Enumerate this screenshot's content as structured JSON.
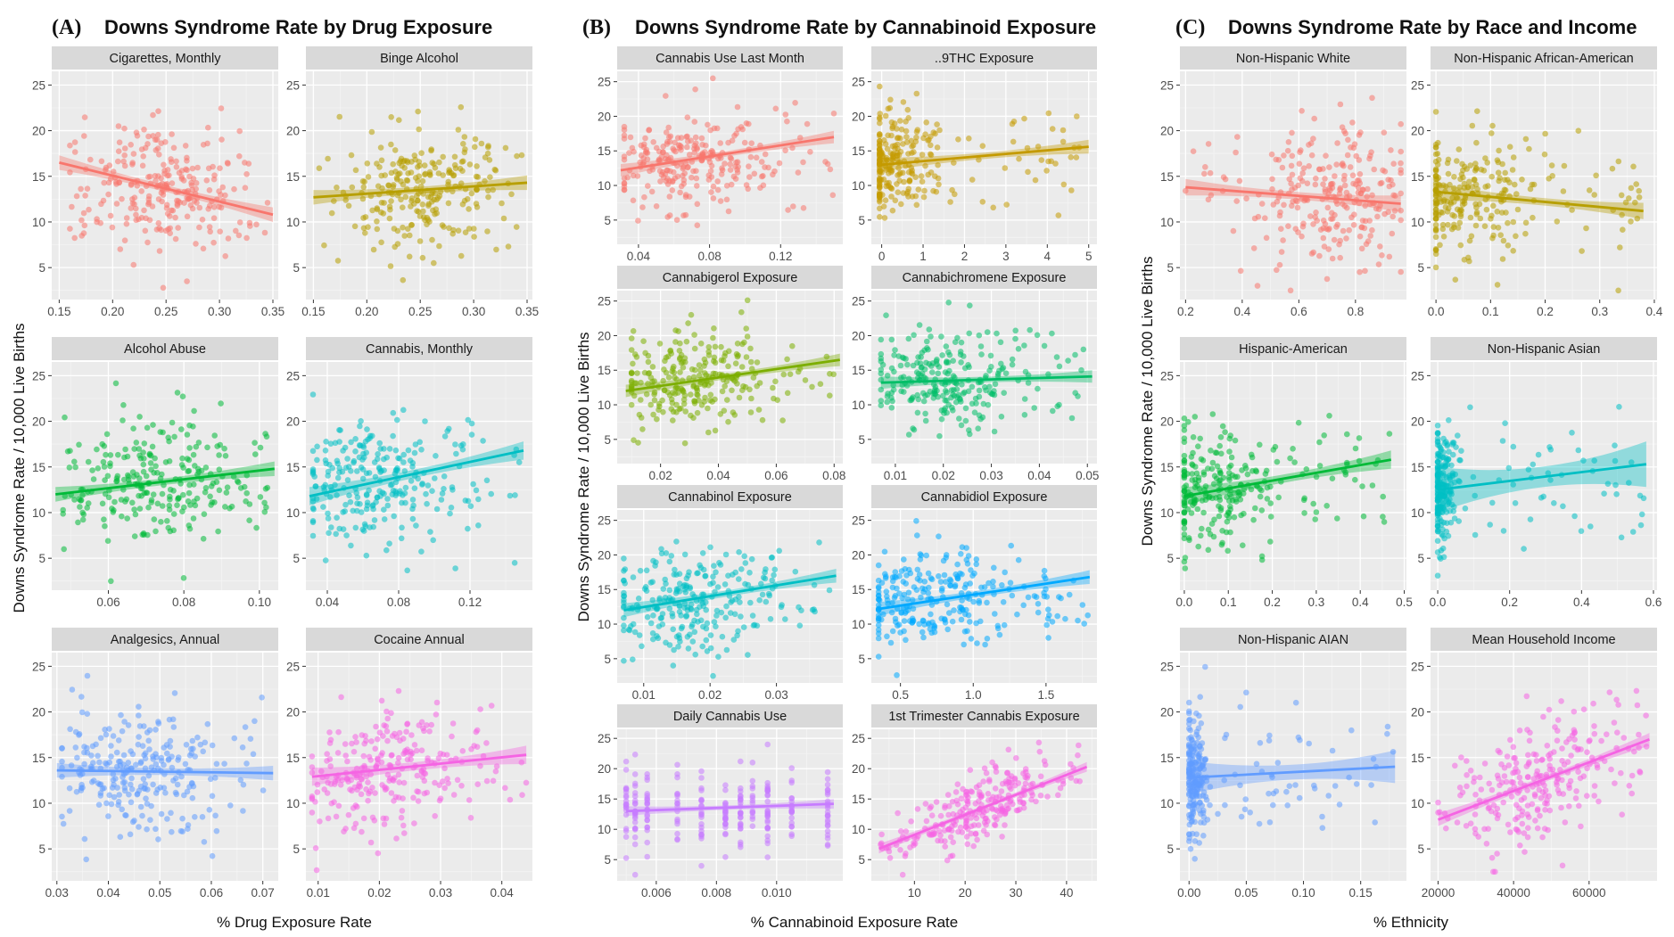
{
  "figure": {
    "panels": [
      {
        "tag": "(A)",
        "title": "Downs Syndrome Rate by Drug Exposure",
        "xlabel": "% Drug Exposure Rate",
        "ylabel": "Downs Syndrome Rate / 10,000 Live Births"
      },
      {
        "tag": "(B)",
        "title": "Downs Syndrome Rate by Cannabinoid Exposure",
        "xlabel": "% Cannabinoid Exposure Rate",
        "ylabel": "Downs Syndrome Rate / 10,000 Live Births"
      },
      {
        "tag": "(C)",
        "title": "Downs Syndrome Rate by Race and Income",
        "xlabel": "% Ethnicity",
        "ylabel": "Downs Syndrome Rate / 10,000 Live Births"
      }
    ]
  },
  "chart_data": [
    {
      "type": "scatter",
      "panel": 0,
      "row": 0,
      "col": 0,
      "title": "Cigarettes, Monthly",
      "color": "#F8766D",
      "xlim": [
        0.143,
        0.355
      ],
      "xticks": [
        0.15,
        0.2,
        0.25,
        0.3,
        0.35
      ],
      "xtick_labels": [
        "0.15",
        "0.20",
        "0.25",
        "0.30",
        "0.35"
      ],
      "ylim": [
        1.5,
        26.5
      ],
      "yticks": [
        5,
        10,
        15,
        20,
        25
      ],
      "ytick_labels": [
        "5",
        "10",
        "15",
        "20",
        "25"
      ],
      "fit": [
        [
          0.15,
          16.5
        ],
        [
          0.35,
          10.8
        ]
      ],
      "ci": 0.8,
      "cloud": {
        "cx": 0.245,
        "sx": 0.035,
        "my": 13.3,
        "sy": 3.5,
        "xmin": 0.16,
        "xmax": 0.345,
        "n": 260
      }
    },
    {
      "type": "scatter",
      "panel": 0,
      "row": 0,
      "col": 1,
      "title": "Binge Alcohol",
      "color": "#B79F00",
      "xlim": [
        0.143,
        0.355
      ],
      "xticks": [
        0.15,
        0.2,
        0.25,
        0.3,
        0.35
      ],
      "xtick_labels": [
        "0.15",
        "0.20",
        "0.25",
        "0.30",
        "0.35"
      ],
      "ylim": [
        1.5,
        26.5
      ],
      "yticks": [
        5,
        10,
        15,
        20,
        25
      ],
      "ytick_labels": [
        "5",
        "10",
        "15",
        "20",
        "25"
      ],
      "fit": [
        [
          0.15,
          12.7
        ],
        [
          0.35,
          14.3
        ]
      ],
      "ci": 0.8,
      "cloud": {
        "cx": 0.25,
        "sx": 0.035,
        "my": 13.3,
        "sy": 3.5,
        "xmin": 0.155,
        "xmax": 0.345,
        "n": 260
      }
    },
    {
      "type": "scatter",
      "panel": 0,
      "row": 1,
      "col": 0,
      "title": "Alcohol Abuse",
      "color": "#00BA38",
      "xlim": [
        0.045,
        0.105
      ],
      "xticks": [
        0.06,
        0.08,
        0.1
      ],
      "xtick_labels": [
        "0.06",
        "0.08",
        "0.10"
      ],
      "ylim": [
        1.5,
        26.5
      ],
      "yticks": [
        5,
        10,
        15,
        20,
        25
      ],
      "ytick_labels": [
        "5",
        "10",
        "15",
        "20",
        "25"
      ],
      "fit": [
        [
          0.046,
          12.0
        ],
        [
          0.104,
          14.8
        ]
      ],
      "ci": 0.8,
      "cloud": {
        "cx": 0.073,
        "sx": 0.011,
        "my": 13.3,
        "sy": 3.5,
        "xmin": 0.048,
        "xmax": 0.103,
        "n": 260
      }
    },
    {
      "type": "scatter",
      "panel": 0,
      "row": 1,
      "col": 1,
      "title": "Cannabis, Monthly",
      "color": "#00BFC4",
      "xlim": [
        0.028,
        0.155
      ],
      "xticks": [
        0.04,
        0.08,
        0.12
      ],
      "xtick_labels": [
        "0.04",
        "0.08",
        "0.12"
      ],
      "ylim": [
        1.5,
        26.5
      ],
      "yticks": [
        5,
        10,
        15,
        20,
        25
      ],
      "ytick_labels": [
        "5",
        "10",
        "15",
        "20",
        "25"
      ],
      "fit": [
        [
          0.03,
          11.8
        ],
        [
          0.15,
          16.8
        ]
      ],
      "ci": 1.0,
      "cloud": {
        "cx": 0.065,
        "sx": 0.022,
        "my": 13.3,
        "sy": 3.5,
        "xmin": 0.032,
        "xmax": 0.15,
        "n": 260
      }
    },
    {
      "type": "scatter",
      "panel": 0,
      "row": 2,
      "col": 0,
      "title": "Analgesics, Annual",
      "color": "#619CFF",
      "xlim": [
        0.029,
        0.073
      ],
      "xticks": [
        0.03,
        0.04,
        0.05,
        0.06,
        0.07
      ],
      "xtick_labels": [
        "0.03",
        "0.04",
        "0.05",
        "0.06",
        "0.07"
      ],
      "ylim": [
        1.5,
        26.5
      ],
      "yticks": [
        5,
        10,
        15,
        20,
        25
      ],
      "ytick_labels": [
        "5",
        "10",
        "15",
        "20",
        "25"
      ],
      "fit": [
        [
          0.03,
          13.6
        ],
        [
          0.072,
          13.3
        ]
      ],
      "ci": 0.8,
      "cloud": {
        "cx": 0.045,
        "sx": 0.008,
        "my": 13.3,
        "sy": 3.5,
        "xmin": 0.031,
        "xmax": 0.071,
        "n": 260
      }
    },
    {
      "type": "scatter",
      "panel": 0,
      "row": 2,
      "col": 1,
      "title": "Cocaine Annual",
      "color": "#F564E3",
      "xlim": [
        0.008,
        0.045
      ],
      "xticks": [
        0.01,
        0.02,
        0.03,
        0.04
      ],
      "xtick_labels": [
        "0.01",
        "0.02",
        "0.03",
        "0.04"
      ],
      "ylim": [
        1.5,
        26.5
      ],
      "yticks": [
        5,
        10,
        15,
        20,
        25
      ],
      "ytick_labels": [
        "5",
        "10",
        "15",
        "20",
        "25"
      ],
      "fit": [
        [
          0.009,
          12.9
        ],
        [
          0.044,
          15.3
        ]
      ],
      "ci": 1.0,
      "cloud": {
        "cx": 0.02,
        "sx": 0.006,
        "my": 13.3,
        "sy": 3.5,
        "xmin": 0.009,
        "xmax": 0.044,
        "n": 260
      }
    },
    {
      "type": "scatter",
      "panel": 1,
      "row": 0,
      "col": 0,
      "title": "Cannabis Use Last Month",
      "color": "#F8766D",
      "xlim": [
        0.028,
        0.155
      ],
      "xticks": [
        0.04,
        0.08,
        0.12
      ],
      "xtick_labels": [
        "0.04",
        "0.08",
        "0.12"
      ],
      "ylim": [
        1.5,
        26.5
      ],
      "yticks": [
        5,
        10,
        15,
        20,
        25
      ],
      "ytick_labels": [
        "5",
        "10",
        "15",
        "20",
        "25"
      ],
      "fit": [
        [
          0.03,
          12.2
        ],
        [
          0.15,
          17.0
        ]
      ],
      "ci": 0.9,
      "cloud": {
        "cx": 0.065,
        "sx": 0.022,
        "my": 13.3,
        "sy": 3.5,
        "xmin": 0.032,
        "xmax": 0.15,
        "n": 260
      }
    },
    {
      "type": "scatter",
      "panel": 1,
      "row": 0,
      "col": 1,
      "title": "..9THC Exposure",
      "color": "#C49A00",
      "xlim": [
        -0.25,
        5.2
      ],
      "xticks": [
        0,
        1,
        2,
        3,
        4,
        5
      ],
      "xtick_labels": [
        "0",
        "1",
        "2",
        "3",
        "4",
        "5"
      ],
      "ylim": [
        1.5,
        26.5
      ],
      "yticks": [
        5,
        10,
        15,
        20,
        25
      ],
      "ytick_labels": [
        "5",
        "10",
        "15",
        "20",
        "25"
      ],
      "fit": [
        [
          0.0,
          13.0
        ],
        [
          5.0,
          15.6
        ]
      ],
      "ci": 1.0,
      "cloud": {
        "cx": 0.25,
        "sx": 0.5,
        "my": 13.3,
        "sy": 3.5,
        "xmin": -0.05,
        "xmax": 5.0,
        "n": 260
      }
    },
    {
      "type": "scatter",
      "panel": 1,
      "row": 1,
      "col": 0,
      "title": "Cannabigerol Exposure",
      "color": "#7CAE00",
      "xlim": [
        0.005,
        0.083
      ],
      "xticks": [
        0.02,
        0.04,
        0.06,
        0.08
      ],
      "xtick_labels": [
        "0.02",
        "0.04",
        "0.06",
        "0.08"
      ],
      "ylim": [
        1.5,
        26.5
      ],
      "yticks": [
        5,
        10,
        15,
        20,
        25
      ],
      "ytick_labels": [
        "5",
        "10",
        "15",
        "20",
        "25"
      ],
      "fit": [
        [
          0.008,
          12.0
        ],
        [
          0.082,
          16.5
        ]
      ],
      "ci": 0.9,
      "cloud": {
        "cx": 0.03,
        "sx": 0.013,
        "my": 13.3,
        "sy": 3.5,
        "xmin": 0.01,
        "xmax": 0.08,
        "n": 260
      }
    },
    {
      "type": "scatter",
      "panel": 1,
      "row": 1,
      "col": 1,
      "title": "Cannabichromene Exposure",
      "color": "#00BE67",
      "xlim": [
        0.005,
        0.052
      ],
      "xticks": [
        0.01,
        0.02,
        0.03,
        0.04,
        0.05
      ],
      "xtick_labels": [
        "0.01",
        "0.02",
        "0.03",
        "0.04",
        "0.05"
      ],
      "ylim": [
        1.5,
        26.5
      ],
      "yticks": [
        5,
        10,
        15,
        20,
        25
      ],
      "ytick_labels": [
        "5",
        "10",
        "15",
        "20",
        "25"
      ],
      "fit": [
        [
          0.007,
          13.2
        ],
        [
          0.051,
          14.1
        ]
      ],
      "ci": 0.9,
      "cloud": {
        "cx": 0.02,
        "sx": 0.008,
        "my": 13.3,
        "sy": 3.5,
        "xmin": 0.007,
        "xmax": 0.05,
        "n": 260
      }
    },
    {
      "type": "scatter",
      "panel": 1,
      "row": 2,
      "col": 0,
      "title": "Cannabinol Exposure",
      "color": "#00BFC4",
      "xlim": [
        0.006,
        0.04
      ],
      "xticks": [
        0.01,
        0.02,
        0.03
      ],
      "xtick_labels": [
        "0.01",
        "0.02",
        "0.03"
      ],
      "ylim": [
        1.5,
        26.5
      ],
      "yticks": [
        5,
        10,
        15,
        20,
        25
      ],
      "ytick_labels": [
        "5",
        "10",
        "15",
        "20",
        "25"
      ],
      "fit": [
        [
          0.007,
          12.0
        ],
        [
          0.039,
          17.0
        ]
      ],
      "ci": 1.0,
      "cloud": {
        "cx": 0.016,
        "sx": 0.006,
        "my": 13.3,
        "sy": 3.5,
        "xmin": 0.007,
        "xmax": 0.038,
        "n": 260
      }
    },
    {
      "type": "scatter",
      "panel": 1,
      "row": 2,
      "col": 1,
      "title": "Cannabidiol Exposure",
      "color": "#00A9FF",
      "xlim": [
        0.3,
        1.85
      ],
      "xticks": [
        0.5,
        1.0,
        1.5
      ],
      "xtick_labels": [
        "0.5",
        "1.0",
        "1.5"
      ],
      "ylim": [
        1.5,
        26.5
      ],
      "yticks": [
        5,
        10,
        15,
        20,
        25
      ],
      "ytick_labels": [
        "5",
        "10",
        "15",
        "20",
        "25"
      ],
      "fit": [
        [
          0.35,
          12.2
        ],
        [
          1.8,
          16.8
        ]
      ],
      "ci": 1.0,
      "cloud": {
        "cx": 0.75,
        "sx": 0.3,
        "my": 13.3,
        "sy": 3.5,
        "xmin": 0.35,
        "xmax": 1.8,
        "n": 260
      }
    },
    {
      "type": "scatter",
      "panel": 1,
      "row": 3,
      "col": 0,
      "title": "Daily Cannabis Use",
      "color": "#C77CFF",
      "xlim": [
        0.0047,
        0.0122
      ],
      "xticks": [
        0.006,
        0.008,
        0.01
      ],
      "xtick_labels": [
        "0.006",
        "0.008",
        "0.010"
      ],
      "ylim": [
        1.5,
        26.5
      ],
      "yticks": [
        5,
        10,
        15,
        20,
        25
      ],
      "ytick_labels": [
        "5",
        "10",
        "15",
        "20",
        "25"
      ],
      "fit": [
        [
          0.005,
          13.0
        ],
        [
          0.0119,
          14.2
        ]
      ],
      "ci": 0.8,
      "discrete_x": [
        0.005,
        0.0053,
        0.0057,
        0.0067,
        0.0075,
        0.0083,
        0.0088,
        0.0092,
        0.0097,
        0.0105,
        0.0117
      ],
      "cloud": {
        "cx": 0.008,
        "sx": 0.002,
        "my": 13.3,
        "sy": 3.5,
        "xmin": 0.005,
        "xmax": 0.0118,
        "n": 240
      }
    },
    {
      "type": "scatter",
      "panel": 1,
      "row": 3,
      "col": 1,
      "title": "1st Trimester Cannabis Exposure",
      "color": "#F564E3",
      "xlim": [
        1.5,
        46
      ],
      "xticks": [
        10,
        20,
        30,
        40
      ],
      "xtick_labels": [
        "10",
        "20",
        "30",
        "40"
      ],
      "ylim": [
        1.5,
        26.5
      ],
      "yticks": [
        5,
        10,
        15,
        20,
        25
      ],
      "ytick_labels": [
        "5",
        "10",
        "15",
        "20",
        "25"
      ],
      "fit": [
        [
          3,
          6.8
        ],
        [
          44,
          20.3
        ]
      ],
      "ci": 0.8,
      "cloud": {
        "cx": 22,
        "sx": 7,
        "my": 0,
        "sy": 2.6,
        "xmin": 3,
        "xmax": 44,
        "n": 260
      }
    },
    {
      "type": "scatter",
      "panel": 2,
      "row": 0,
      "col": 0,
      "title": "Non-Hispanic White",
      "color": "#F8766D",
      "xlim": [
        0.18,
        0.98
      ],
      "xticks": [
        0.2,
        0.4,
        0.6,
        0.8
      ],
      "xtick_labels": [
        "0.2",
        "0.4",
        "0.6",
        "0.8"
      ],
      "ylim": [
        1.5,
        26.5
      ],
      "yticks": [
        5,
        10,
        15,
        20,
        25
      ],
      "ytick_labels": [
        "5",
        "10",
        "15",
        "20",
        "25"
      ],
      "fit": [
        [
          0.2,
          13.8
        ],
        [
          0.96,
          12.0
        ]
      ],
      "ci": 0.9,
      "cloud": {
        "cx": 0.72,
        "sx": 0.14,
        "my": 13.3,
        "sy": 3.8,
        "xmin": 0.2,
        "xmax": 0.96,
        "n": 260
      }
    },
    {
      "type": "scatter",
      "panel": 2,
      "row": 0,
      "col": 1,
      "title": "Non-Hispanic African-American",
      "color": "#B79F00",
      "xlim": [
        -0.01,
        0.405
      ],
      "xticks": [
        0,
        0.1,
        0.2,
        0.3,
        0.4
      ],
      "xtick_labels": [
        "0.0",
        "0.1",
        "0.2",
        "0.3",
        "0.4"
      ],
      "ylim": [
        1.5,
        26.5
      ],
      "yticks": [
        5,
        10,
        15,
        20,
        25
      ],
      "ytick_labels": [
        "5",
        "10",
        "15",
        "20",
        "25"
      ],
      "fit": [
        [
          0.0,
          13.3
        ],
        [
          0.38,
          11.2
        ]
      ],
      "ci": 0.9,
      "cloud": {
        "cx": 0.04,
        "sx": 0.07,
        "my": 13.3,
        "sy": 3.5,
        "xmin": 0.0,
        "xmax": 0.38,
        "n": 260
      }
    },
    {
      "type": "scatter",
      "panel": 2,
      "row": 1,
      "col": 0,
      "title": "Hispanic-American",
      "color": "#00BA38",
      "xlim": [
        -0.01,
        0.505
      ],
      "xticks": [
        0,
        0.1,
        0.2,
        0.3,
        0.4,
        0.5
      ],
      "xtick_labels": [
        "0.0",
        "0.1",
        "0.2",
        "0.3",
        "0.4",
        "0.5"
      ],
      "ylim": [
        1.5,
        26.5
      ],
      "yticks": [
        5,
        10,
        15,
        20,
        25
      ],
      "ytick_labels": [
        "5",
        "10",
        "15",
        "20",
        "25"
      ],
      "fit": [
        [
          0.0,
          11.8
        ],
        [
          0.47,
          15.8
        ]
      ],
      "ci": 1.0,
      "cloud": {
        "cx": 0.06,
        "sx": 0.07,
        "my": 13.3,
        "sy": 3.5,
        "xmin": 0.0,
        "xmax": 0.47,
        "n": 260
      }
    },
    {
      "type": "scatter",
      "panel": 2,
      "row": 1,
      "col": 1,
      "title": "Non-Hispanic Asian",
      "color": "#00BFC4",
      "xlim": [
        -0.02,
        0.61
      ],
      "xticks": [
        0,
        0.2,
        0.4,
        0.6
      ],
      "xtick_labels": [
        "0.0",
        "0.2",
        "0.4",
        "0.6"
      ],
      "ylim": [
        1.5,
        26.5
      ],
      "yticks": [
        5,
        10,
        15,
        20,
        25
      ],
      "ytick_labels": [
        "5",
        "10",
        "15",
        "20",
        "25"
      ],
      "fit": [
        [
          0.0,
          12.5
        ],
        [
          0.58,
          15.3
        ]
      ],
      "ci": 2.5,
      "cloud": {
        "cx": 0.01,
        "sx": 0.02,
        "my": 13.3,
        "sy": 3.5,
        "xmin": 0.0,
        "xmax": 0.58,
        "n": 260
      }
    },
    {
      "type": "scatter",
      "panel": 2,
      "row": 2,
      "col": 0,
      "title": "Non-Hispanic AIAN",
      "color": "#619CFF",
      "xlim": [
        -0.008,
        0.19
      ],
      "xticks": [
        0,
        0.05,
        0.1,
        0.15
      ],
      "xtick_labels": [
        "0.00",
        "0.05",
        "0.10",
        "0.15"
      ],
      "ylim": [
        1.5,
        26.5
      ],
      "yticks": [
        5,
        10,
        15,
        20,
        25
      ],
      "ytick_labels": [
        "5",
        "10",
        "15",
        "20",
        "25"
      ],
      "fit": [
        [
          0.0,
          12.8
        ],
        [
          0.18,
          14.0
        ]
      ],
      "ci": 1.8,
      "cloud": {
        "cx": 0.004,
        "sx": 0.006,
        "my": 13.3,
        "sy": 3.5,
        "xmin": 0.0,
        "xmax": 0.18,
        "n": 260
      }
    },
    {
      "type": "scatter",
      "panel": 2,
      "row": 2,
      "col": 1,
      "title": "Mean Household Income",
      "color": "#F564E3",
      "xlim": [
        18000,
        78000
      ],
      "xticks": [
        20000,
        40000,
        60000
      ],
      "xtick_labels": [
        "20000",
        "40000",
        "60000"
      ],
      "ylim": [
        1.5,
        26.5
      ],
      "yticks": [
        5,
        10,
        15,
        20,
        25
      ],
      "ytick_labels": [
        "5",
        "10",
        "15",
        "20",
        "25"
      ],
      "fit": [
        [
          20000,
          8.2
        ],
        [
          76000,
          17.0
        ]
      ],
      "ci": 0.7,
      "cloud": {
        "cx": 45000,
        "sx": 11000,
        "my": 0,
        "sy": 3.5,
        "xmin": 20000,
        "xmax": 76000,
        "n": 260
      }
    }
  ]
}
